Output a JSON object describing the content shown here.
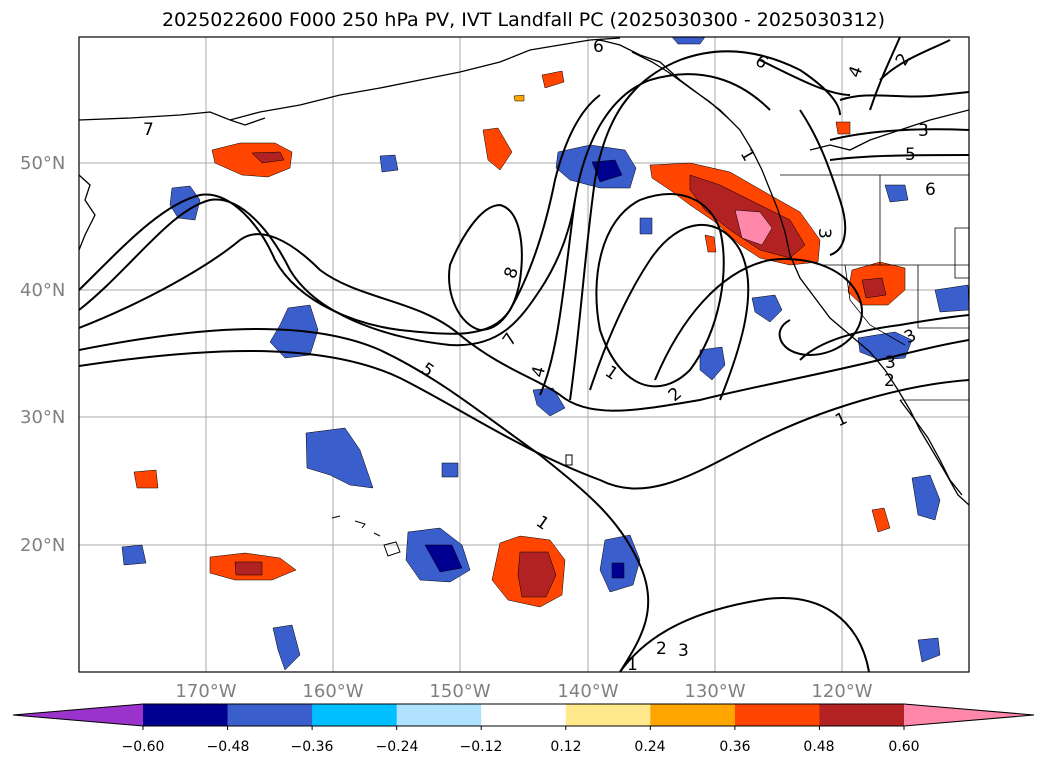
{
  "title": "2025022600 F000 250 hPa PV, IVT Landfall PC (2025030300 - 2025030312)",
  "lat_labels": [
    "50°N",
    "40°N",
    "30°N",
    "20°N"
  ],
  "lon_labels": [
    "170°W",
    "160°W",
    "150°W",
    "140°W",
    "130°W",
    "120°W"
  ],
  "contour_labels": [
    "7",
    "8",
    "7",
    "4",
    "5",
    "1",
    "2",
    "1",
    "1",
    "3",
    "2",
    "6",
    "4",
    "2",
    "6",
    "3",
    "5",
    "6",
    "3",
    "3",
    "1",
    "2",
    "3",
    "1"
  ],
  "colorbar": {
    "colors": [
      "#9933cc",
      "#000090",
      "#3a5fcd",
      "#00bfff",
      "#b0e2ff",
      "#ffffff",
      "#ffe98c",
      "#ffa500",
      "#ff4500",
      "#b22222",
      "#ff88aa"
    ],
    "tick_labels": [
      "−0.60",
      "−0.48",
      "−0.36",
      "−0.24",
      "−0.12",
      "0.12",
      "0.24",
      "0.36",
      "0.48",
      "0.60"
    ]
  }
}
